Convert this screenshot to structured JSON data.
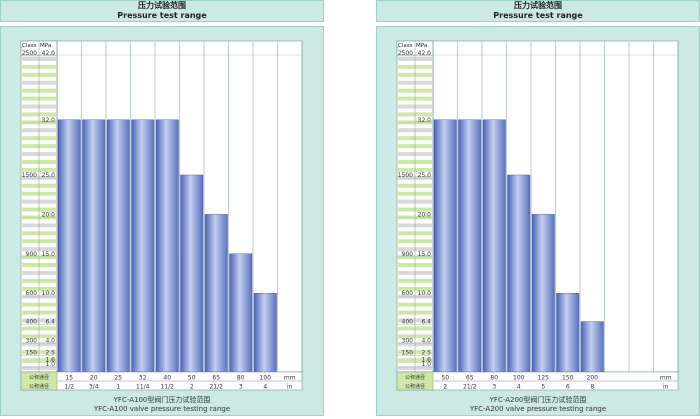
{
  "chart_data": [
    {
      "type": "bar",
      "title_cn": "压力试验范围",
      "title_en": "Pressure test range",
      "caption_cn": "YFC-A100型阀门压力试验范围",
      "caption_en": "YFC-A100 valve pressure testing range",
      "y_axis_header_left": "Class",
      "y_axis_header_right": "MPa",
      "ylim": [
        0,
        42
      ],
      "ticks_mpa": [
        "1.0",
        "1.6",
        "2.5",
        "4.0",
        "6.4",
        "10.0",
        "15.0",
        "20.0",
        "25.0",
        "32.0",
        "42.0"
      ],
      "ticks_class": [
        "",
        "",
        "150",
        "300",
        "400",
        "600",
        "900",
        "",
        "1500",
        "",
        "2500"
      ],
      "categories_mm": [
        "15",
        "20",
        "25",
        "32",
        "40",
        "50",
        "65",
        "80",
        "100"
      ],
      "categories_in": [
        "1/2",
        "3/4",
        "1",
        "11/4",
        "11/2",
        "2",
        "21/2",
        "3",
        "4"
      ],
      "values": [
        32.0,
        32.0,
        32.0,
        32.0,
        32.0,
        25.0,
        20.0,
        15.0,
        10.0
      ],
      "empty_columns": 1,
      "row_label_dn": "公称通径",
      "row_label_size": "公称通径",
      "unit_mm": "mm",
      "unit_in": "in"
    },
    {
      "type": "bar",
      "title_cn": "压力试验范围",
      "title_en": "Pressure test range",
      "caption_cn": "YFC-A200型阀门压力试验范围",
      "caption_en": "YFC-A200 valve pressure testing range",
      "y_axis_header_left": "Class",
      "y_axis_header_right": "MPa",
      "ylim": [
        0,
        42
      ],
      "ticks_mpa": [
        "1.0",
        "1.6",
        "2.5",
        "4.0",
        "6.4",
        "10.0",
        "15.0",
        "20.0",
        "25.0",
        "32.0",
        "42.0"
      ],
      "ticks_class": [
        "",
        "",
        "150",
        "300",
        "400",
        "600",
        "900",
        "",
        "1500",
        "",
        "2500"
      ],
      "categories_mm": [
        "50",
        "65",
        "80",
        "100",
        "125",
        "150",
        "200"
      ],
      "categories_in": [
        "2",
        "21/2",
        "3",
        "4",
        "5",
        "6",
        "8"
      ],
      "values": [
        32.0,
        32.0,
        32.0,
        25.0,
        20.0,
        10.0,
        6.4
      ],
      "empty_columns": 3,
      "row_label_dn": "公称通径",
      "row_label_size": "公称通径",
      "unit_mm": "mm",
      "unit_in": "in"
    }
  ]
}
